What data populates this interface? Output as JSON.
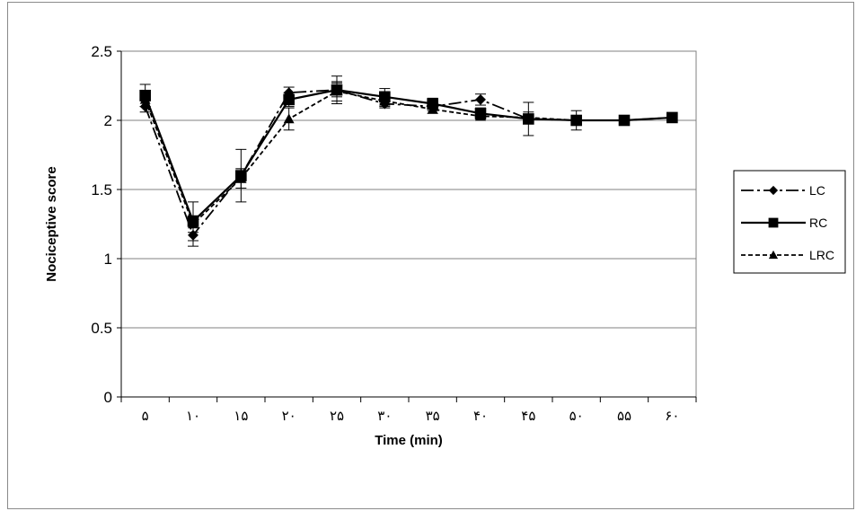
{
  "chart_data": {
    "type": "line",
    "title": "",
    "xlabel": "Time (min)",
    "ylabel": "Nociceptive score",
    "categories": [
      "۵",
      "۱۰",
      "۱۵",
      "۲۰",
      "۲۵",
      "۳۰",
      "۳۵",
      "۴۰",
      "۴۵",
      "۵۰",
      "۵۵",
      "۶۰"
    ],
    "ylim": [
      0,
      2.5
    ],
    "yticks": [
      "0",
      "0.5",
      "1",
      "1.5",
      "2",
      "2.5"
    ],
    "grid": "horizontal",
    "legend_position": "right",
    "series": [
      {
        "name": "LC",
        "marker": "diamond",
        "line_style": "dash-dot",
        "values": [
          2.1,
          1.17,
          1.6,
          2.2,
          2.22,
          2.12,
          2.1,
          2.15,
          2.01,
          2.0,
          2.0,
          2.02
        ],
        "errors": [
          0.04,
          0.08,
          0.05,
          0.04,
          0.05,
          0.03,
          0.03,
          0.04,
          0.02,
          0.02,
          0.01,
          0.02
        ]
      },
      {
        "name": "RC",
        "marker": "square",
        "line_style": "solid",
        "values": [
          2.18,
          1.27,
          1.6,
          2.15,
          2.22,
          2.17,
          2.12,
          2.05,
          2.01,
          2.0,
          2.0,
          2.02
        ],
        "errors": [
          0.08,
          0.14,
          0.19,
          0.05,
          0.1,
          0.06,
          0.04,
          0.04,
          0.12,
          0.07,
          0.01,
          0.02
        ]
      },
      {
        "name": "LRC",
        "marker": "triangle",
        "line_style": "dashed",
        "values": [
          2.15,
          1.25,
          1.58,
          2.01,
          2.21,
          2.14,
          2.08,
          2.03,
          2.02,
          2.0,
          2.0,
          2.02
        ],
        "errors": [
          0.05,
          0.06,
          0.07,
          0.08,
          0.07,
          0.04,
          0.03,
          0.03,
          0.04,
          0.02,
          0.01,
          0.02
        ]
      }
    ]
  },
  "colors": {
    "line": "#000000",
    "grid": "#808080",
    "plot_border": "#808080"
  }
}
